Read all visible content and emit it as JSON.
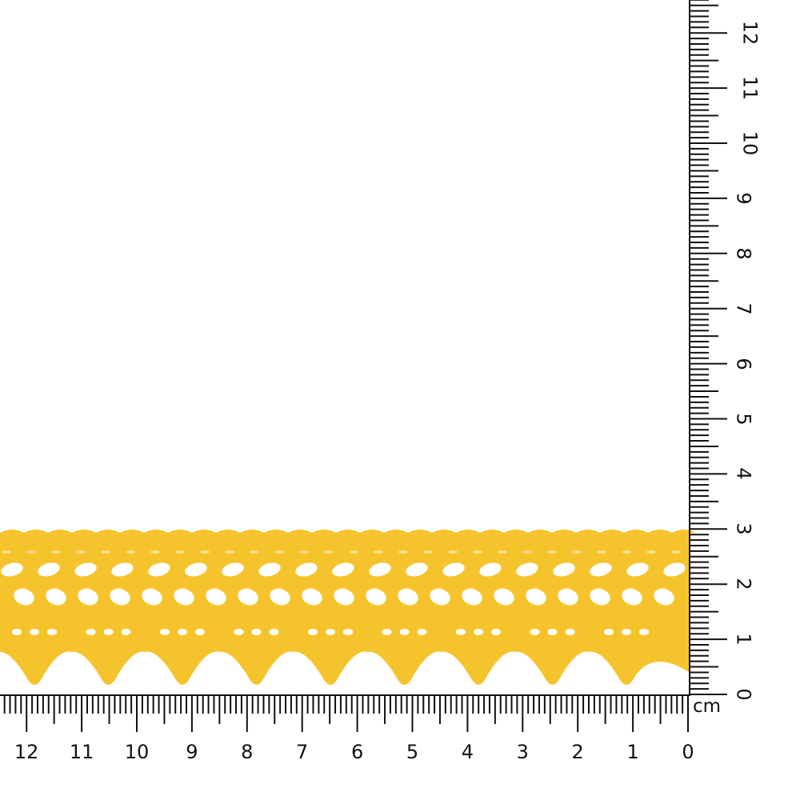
{
  "product": {
    "name": "yellow crochet lace trim",
    "color": "#F5C42C"
  },
  "ruler": {
    "unit": "cm",
    "horizontal_labels": [
      "0",
      "1",
      "2",
      "3",
      "4",
      "5",
      "6",
      "7",
      "8",
      "9",
      "10",
      "11",
      "12"
    ],
    "vertical_labels": [
      "0",
      "1",
      "2",
      "3",
      "4",
      "5",
      "6",
      "7",
      "8",
      "9",
      "10",
      "11",
      "12"
    ],
    "tick_color": "#111111"
  }
}
